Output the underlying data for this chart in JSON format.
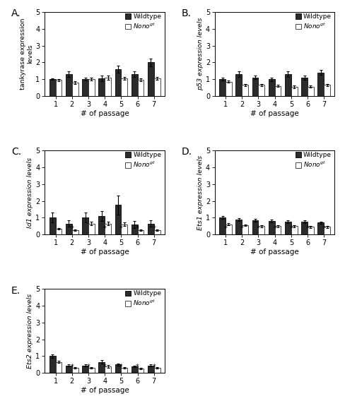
{
  "panels": [
    {
      "label": "A.",
      "ylabel": "tankyrase expression\nlevels",
      "ylabel_italic": false,
      "xlabel": "# of passage",
      "ylim": [
        0,
        5
      ],
      "yticks": [
        0,
        1,
        2,
        3,
        4,
        5
      ],
      "wt_values": [
        1.0,
        1.3,
        1.0,
        1.05,
        1.6,
        1.3,
        2.0
      ],
      "wt_errors": [
        0.05,
        0.15,
        0.08,
        0.15,
        0.22,
        0.15,
        0.22
      ],
      "nono_values": [
        0.95,
        0.8,
        1.0,
        1.1,
        1.05,
        0.95,
        1.05
      ],
      "nono_errors": [
        0.05,
        0.08,
        0.08,
        0.12,
        0.1,
        0.08,
        0.1
      ],
      "asterisks": []
    },
    {
      "label": "B.",
      "ylabel": "p53 expression levels",
      "ylabel_italic": true,
      "xlabel": "# of passage",
      "ylim": [
        0,
        5
      ],
      "yticks": [
        0,
        1,
        2,
        3,
        4,
        5
      ],
      "wt_values": [
        1.0,
        1.3,
        1.1,
        1.0,
        1.3,
        1.1,
        1.4
      ],
      "wt_errors": [
        0.08,
        0.15,
        0.1,
        0.1,
        0.15,
        0.12,
        0.15
      ],
      "nono_values": [
        0.85,
        0.65,
        0.65,
        0.6,
        0.55,
        0.55,
        0.65
      ],
      "nono_errors": [
        0.06,
        0.06,
        0.05,
        0.07,
        0.07,
        0.06,
        0.08
      ],
      "asterisks": []
    },
    {
      "label": "C.",
      "ylabel": "Id1 expression levels",
      "ylabel_italic": true,
      "xlabel": "# of passage",
      "ylim": [
        0,
        5
      ],
      "yticks": [
        0,
        1,
        2,
        3,
        4,
        5
      ],
      "wt_values": [
        1.0,
        0.65,
        1.0,
        1.1,
        1.75,
        0.6,
        0.65
      ],
      "wt_errors": [
        0.3,
        0.2,
        0.3,
        0.3,
        0.55,
        0.2,
        0.2
      ],
      "nono_values": [
        0.35,
        0.25,
        0.65,
        0.65,
        0.6,
        0.25,
        0.25
      ],
      "nono_errors": [
        0.05,
        0.05,
        0.1,
        0.1,
        0.1,
        0.05,
        0.05
      ],
      "asterisks": [
        1,
        3,
        4,
        5,
        6
      ]
    },
    {
      "label": "D.",
      "ylabel": "Ets1 expression levels",
      "ylabel_italic": true,
      "xlabel": "# of passage",
      "ylim": [
        0,
        5
      ],
      "yticks": [
        0,
        1,
        2,
        3,
        4,
        5
      ],
      "wt_values": [
        1.0,
        0.9,
        0.85,
        0.8,
        0.75,
        0.75,
        0.7
      ],
      "wt_errors": [
        0.08,
        0.08,
        0.08,
        0.08,
        0.08,
        0.08,
        0.08
      ],
      "nono_values": [
        0.6,
        0.55,
        0.5,
        0.5,
        0.5,
        0.45,
        0.45
      ],
      "nono_errors": [
        0.06,
        0.06,
        0.06,
        0.06,
        0.06,
        0.06,
        0.06
      ],
      "asterisks": [
        0,
        1,
        2,
        3,
        4,
        5,
        6
      ]
    },
    {
      "label": "E.",
      "ylabel": "Ets2 expression levels",
      "ylabel_italic": true,
      "xlabel": "# of passage",
      "ylim": [
        0,
        5
      ],
      "yticks": [
        0,
        1,
        2,
        3,
        4,
        5
      ],
      "wt_values": [
        1.0,
        0.45,
        0.45,
        0.65,
        0.5,
        0.4,
        0.45
      ],
      "wt_errors": [
        0.12,
        0.07,
        0.07,
        0.1,
        0.07,
        0.05,
        0.07
      ],
      "nono_values": [
        0.65,
        0.3,
        0.3,
        0.4,
        0.3,
        0.25,
        0.3
      ],
      "nono_errors": [
        0.06,
        0.04,
        0.04,
        0.08,
        0.04,
        0.04,
        0.04
      ],
      "asterisks": [
        1,
        2,
        3,
        4,
        5,
        6
      ]
    }
  ],
  "passages": [
    1,
    2,
    3,
    4,
    5,
    6,
    7
  ],
  "wt_color": "#2b2b2b",
  "nono_color": "#ffffff",
  "nono_edgecolor": "#2b2b2b",
  "bar_width": 0.38,
  "legend_wt": "Wildtype",
  "legend_nono": "Nono$^{gt}$",
  "fig_width": 4.88,
  "fig_height": 5.68
}
